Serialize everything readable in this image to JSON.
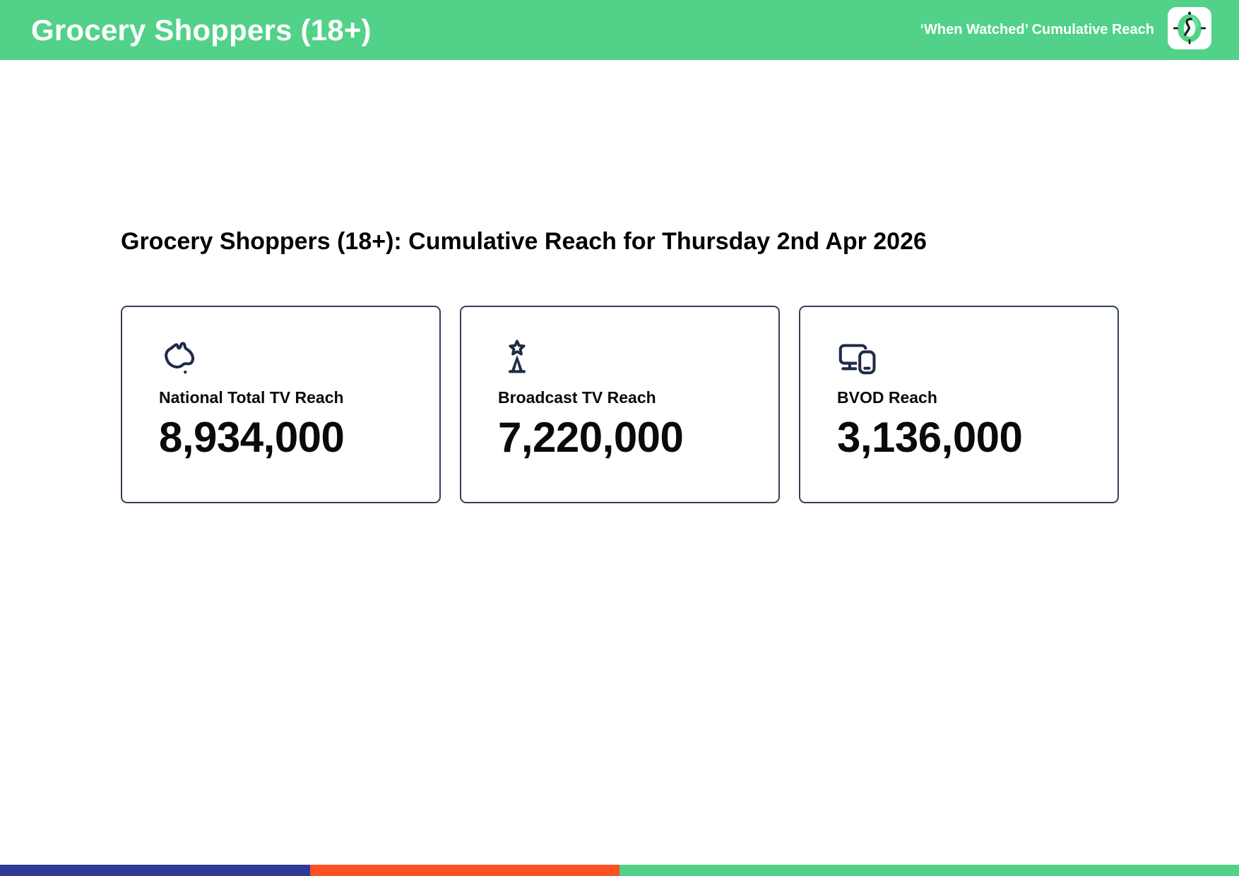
{
  "colors": {
    "brand_green": "#52d189",
    "brand_blue": "#2e3a97",
    "brand_orange": "#fb5123",
    "icon_navy": "#1e2a47",
    "card_border": "#334155",
    "header_text": "#ffffff",
    "body_text": "#0a0a0a"
  },
  "header": {
    "title": "Grocery Shoppers (18+)",
    "tagline": "‘When Watched’ Cumulative Reach",
    "logo": "clock-icon"
  },
  "main": {
    "heading": "Grocery Shoppers (18+): Cumulative Reach for Thursday 2nd Apr 2026",
    "cards": [
      {
        "icon": "australia-map-icon",
        "label": "National Total TV Reach",
        "value": "8,934,000"
      },
      {
        "icon": "broadcast-tower-icon",
        "label": "Broadcast TV Reach",
        "value": "7,220,000"
      },
      {
        "icon": "screens-devices-icon",
        "label": "BVOD Reach",
        "value": "3,136,000"
      }
    ]
  },
  "footer_bar": {
    "segments": [
      {
        "name": "blue",
        "color": "#2e3a97",
        "width_pct": 25
      },
      {
        "name": "orange",
        "color": "#fb5123",
        "width_pct": 25
      },
      {
        "name": "green",
        "color": "#52d189",
        "width_pct": 50
      }
    ]
  }
}
